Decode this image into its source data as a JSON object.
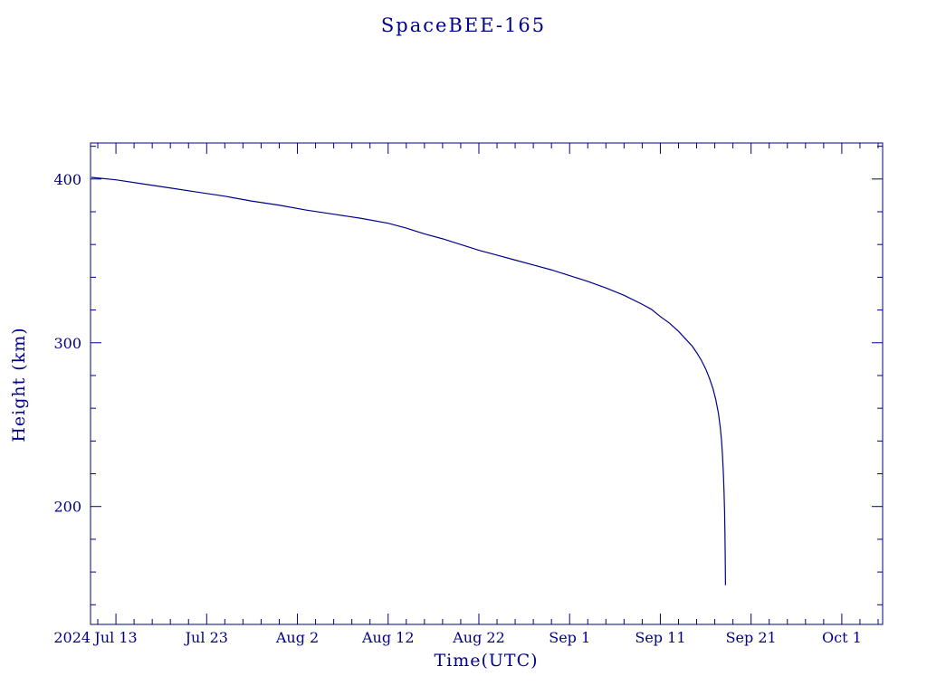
{
  "colors": {
    "line": "#00008B",
    "text": "#00008B",
    "background": "#FFFFFF"
  },
  "chart_data": {
    "type": "line",
    "title": "SpaceBEE-165",
    "xlabel": "Time(UTC)",
    "ylabel": "Height (km)",
    "x_prefix_label": "2024",
    "x_unit": "days since 2024 Jul 13",
    "xlim": [
      -2.8,
      84.5
    ],
    "ylim": [
      128,
      422
    ],
    "x_tick_labels": [
      "Jul 13",
      "Jul 23",
      "Aug 2",
      "Aug 12",
      "Aug 22",
      "Sep 1",
      "Sep 11",
      "Sep 21",
      "Oct 1"
    ],
    "x_tick_days": [
      0,
      10,
      20,
      30,
      40,
      50,
      60,
      70,
      80
    ],
    "x_minor_step": 2,
    "y_ticks": [
      200,
      300,
      400
    ],
    "y_minor_step": 20,
    "grid": false,
    "legend": "none",
    "series": [
      {
        "name": "height_km",
        "points": [
          [
            -2.7,
            401
          ],
          [
            0,
            399.5
          ],
          [
            3,
            397
          ],
          [
            6,
            394.5
          ],
          [
            9,
            392
          ],
          [
            12,
            389.5
          ],
          [
            15,
            386.5
          ],
          [
            18,
            384
          ],
          [
            21,
            381
          ],
          [
            24,
            378.5
          ],
          [
            27,
            376
          ],
          [
            30,
            373
          ],
          [
            32,
            370
          ],
          [
            34,
            366.5
          ],
          [
            36,
            363.5
          ],
          [
            38,
            360
          ],
          [
            40,
            356.5
          ],
          [
            42,
            353.5
          ],
          [
            44,
            350.5
          ],
          [
            46,
            347.5
          ],
          [
            48,
            344.5
          ],
          [
            50,
            341
          ],
          [
            52,
            337.5
          ],
          [
            54,
            333.5
          ],
          [
            56,
            329
          ],
          [
            58,
            323.5
          ],
          [
            59,
            320.5
          ],
          [
            60,
            316
          ],
          [
            61,
            312
          ],
          [
            62,
            307
          ],
          [
            63,
            301
          ],
          [
            63.5,
            298
          ],
          [
            64,
            294
          ],
          [
            64.5,
            289.5
          ],
          [
            65,
            284
          ],
          [
            65.4,
            278.5
          ],
          [
            65.8,
            272
          ],
          [
            66.1,
            265.5
          ],
          [
            66.4,
            257
          ],
          [
            66.6,
            248.5
          ],
          [
            66.75,
            240
          ],
          [
            66.85,
            231
          ],
          [
            66.95,
            220
          ],
          [
            67.02,
            209
          ],
          [
            67.08,
            197
          ],
          [
            67.12,
            184
          ],
          [
            67.15,
            170
          ],
          [
            67.17,
            158
          ],
          [
            67.18,
            152
          ]
        ]
      }
    ]
  }
}
